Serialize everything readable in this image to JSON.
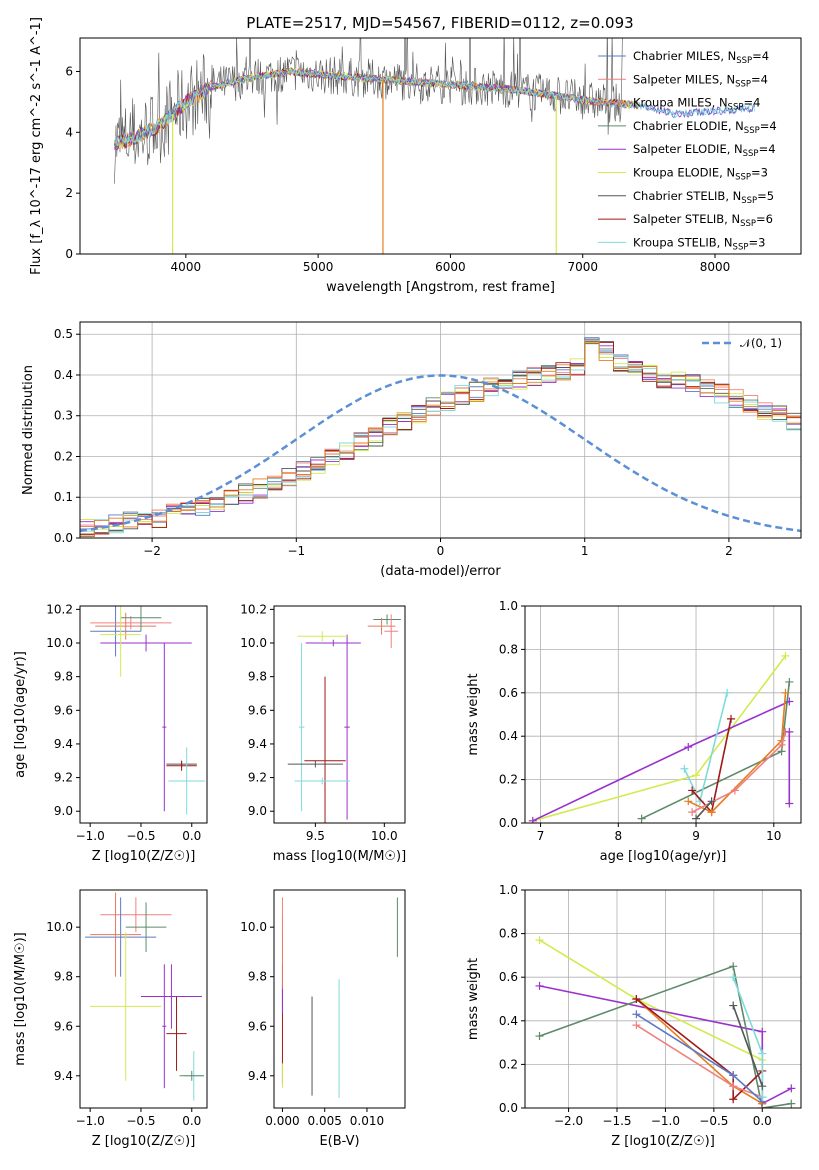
{
  "page_title": "PLATE=2517, MJD=54567, FIBERID=0112, z=0.093",
  "series_colors": {
    "chabrier_miles": "#5b7ac6",
    "salpeter_miles": "#f08080",
    "kroupa_miles": "#e07a5f",
    "chabrier_elodie": "#5f8a6a",
    "salpeter_elodie": "#9932cc",
    "kroupa_elodie": "#d4ea4f",
    "chabrier_stelib": "#555555",
    "salpeter_stelib": "#a01818",
    "kroupa_stelib": "#7fdbdb",
    "orange": "#e67e22"
  },
  "chart_data": [
    {
      "id": "spectrum",
      "type": "line",
      "xlabel": "wavelength [Angstrom, rest frame]",
      "ylabel": "Flux [f_λ 10^-17 erg cm^-2 s^-1 A^-1]",
      "xlim": [
        3200,
        8650
      ],
      "ylim": [
        0,
        7.1
      ],
      "xticks": [
        "4000",
        "5000",
        "6000",
        "7000",
        "8000"
      ],
      "yticks": [
        "0",
        "2",
        "4",
        "6"
      ],
      "legend_placement": "top-right",
      "legend": [
        "Chabrier MILES, N_SSP=4",
        "Salpeter MILES, N_SSP=4",
        "Kroupa MILES, N_SSP=4",
        "Chabrier ELODIE, N_SSP=4",
        "Salpeter ELODIE, N_SSP=4",
        "Kroupa ELODIE, N_SSP=3",
        "Chabrier STELIB, N_SSP=5",
        "Salpeter STELIB, N_SSP=6",
        "Kroupa STELIB, N_SSP=3"
      ],
      "continuum": {
        "x": [
          3450,
          3600,
          3800,
          4000,
          4200,
          4500,
          4800,
          5000,
          5300,
          5600,
          5900,
          6200,
          6500,
          6800,
          7100,
          7400,
          7700,
          8000,
          8300
        ],
        "y": [
          3.6,
          3.8,
          4.2,
          5.0,
          5.5,
          5.8,
          6.0,
          5.9,
          5.8,
          5.7,
          5.6,
          5.5,
          5.4,
          5.2,
          5.0,
          4.9,
          4.6,
          4.7,
          4.8
        ]
      },
      "spikes_to_zero": [
        {
          "x": 5490,
          "color": "orange"
        },
        {
          "x": 6800,
          "color": "kroupa_elodie"
        },
        {
          "x": 3900,
          "color": "kroupa_elodie"
        }
      ]
    },
    {
      "id": "residuals",
      "type": "bar",
      "xlabel": "(data-model)/error",
      "ylabel": "Normed distribution",
      "xlim": [
        -2.5,
        2.5
      ],
      "ylim": [
        0,
        0.53
      ],
      "xticks": [
        "-2",
        "-1",
        "0",
        "1",
        "2"
      ],
      "yticks": [
        "0.0",
        "0.1",
        "0.2",
        "0.3",
        "0.4",
        "0.5"
      ],
      "grid": true,
      "legend_placement": "top-right",
      "legend": [
        "N(0,1)"
      ],
      "bin_width": 0.1,
      "bin_start": -2.5,
      "profile": [
        0.025,
        0.03,
        0.035,
        0.04,
        0.045,
        0.05,
        0.06,
        0.065,
        0.075,
        0.085,
        0.095,
        0.11,
        0.12,
        0.135,
        0.15,
        0.165,
        0.18,
        0.2,
        0.215,
        0.235,
        0.25,
        0.27,
        0.285,
        0.3,
        0.32,
        0.335,
        0.35,
        0.36,
        0.37,
        0.38,
        0.39,
        0.395,
        0.4,
        0.41,
        0.42,
        0.48,
        0.46,
        0.43,
        0.41,
        0.4,
        0.39,
        0.385,
        0.38,
        0.37,
        0.355,
        0.34,
        0.33,
        0.315,
        0.3,
        0.285,
        0.27,
        0.25,
        0.235,
        0.215,
        0.2,
        0.185,
        0.17,
        0.155,
        0.14,
        0.125,
        0.11,
        0.1,
        0.09,
        0.08,
        0.07,
        0.06,
        0.055,
        0.05,
        0.045,
        0.04,
        0.035,
        0.03,
        0.028,
        0.025
      ],
      "normal_pdf": {
        "mean": 0,
        "sd": 1
      }
    },
    {
      "id": "age_vs_Z",
      "type": "scatter",
      "xlabel": "Z [log10(Z/Z☉)]",
      "ylabel": "age [log10(age/yr)]",
      "xlim": [
        -1.1,
        0.15
      ],
      "ylim": [
        8.93,
        10.22
      ],
      "xticks": [
        "-1.0",
        "-0.5",
        "0.0"
      ],
      "yticks": [
        "9.0",
        "9.2",
        "9.4",
        "9.6",
        "9.8",
        "10.0",
        "10.2"
      ],
      "points": [
        {
          "s": "chabrier_miles",
          "x": -0.75,
          "y": 10.07,
          "ex": 0.25,
          "ey": 0.15
        },
        {
          "s": "salpeter_miles",
          "x": -0.6,
          "y": 10.12,
          "ex": 0.4,
          "ey": 0.04
        },
        {
          "s": "kroupa_miles",
          "x": -0.65,
          "y": 10.1,
          "ex": 0.3,
          "ey": 0.08
        },
        {
          "s": "chabrier_elodie",
          "x": -0.5,
          "y": 10.15,
          "ex": 0.2,
          "ey": 0.08
        },
        {
          "s": "salpeter_elodie",
          "x": -0.45,
          "y": 10.0,
          "ex": 0.45,
          "ey": 0.05
        },
        {
          "s": "kroupa_elodie",
          "x": -0.7,
          "y": 10.05,
          "ex": 0.2,
          "ey": 0.25
        },
        {
          "s": "chabrier_stelib",
          "x": -0.1,
          "y": 9.28,
          "ex": 0.15,
          "ey": 0.02
        },
        {
          "s": "salpeter_stelib",
          "x": -0.1,
          "y": 9.27,
          "ex": 0.15,
          "ey": 0.03
        },
        {
          "s": "kroupa_stelib",
          "x": -0.05,
          "y": 9.18,
          "ex": 0.18,
          "ey": 0.2
        },
        {
          "s": "salpeter_elodie",
          "x": -0.27,
          "y": 9.5,
          "ex": 0.02,
          "ey": 0.5
        }
      ]
    },
    {
      "id": "age_vs_mass",
      "type": "scatter",
      "xlabel": "mass [log10(M/M☉)]",
      "ylabel": "",
      "xlim": [
        9.2,
        10.15
      ],
      "ylim": [
        8.93,
        10.22
      ],
      "xticks": [
        "9.5",
        "10.0"
      ],
      "yticks": [
        "9.0",
        "9.2",
        "9.4",
        "9.6",
        "9.8",
        "10.0",
        "10.2"
      ],
      "points": [
        {
          "s": "kroupa_stelib",
          "x": 9.4,
          "y": 9.5,
          "ex": 0.02,
          "ey": 0.5
        },
        {
          "s": "chabrier_stelib",
          "x": 9.5,
          "y": 9.28,
          "ex": 0.2,
          "ey": 0.02
        },
        {
          "s": "salpeter_stelib",
          "x": 9.57,
          "y": 9.3,
          "ex": 0.15,
          "ey": 0.5
        },
        {
          "s": "salpeter_elodie",
          "x": 9.73,
          "y": 9.5,
          "ex": 0.02,
          "ey": 0.55
        },
        {
          "s": "kroupa_elodie",
          "x": 9.55,
          "y": 10.04,
          "ex": 0.18,
          "ey": 0.03
        },
        {
          "s": "chabrier_elodie",
          "x": 10.02,
          "y": 10.14,
          "ex": 0.1,
          "ey": 0.03
        },
        {
          "s": "kroupa_miles",
          "x": 9.98,
          "y": 10.1,
          "ex": 0.1,
          "ey": 0.05
        },
        {
          "s": "salpeter_miles",
          "x": 10.05,
          "y": 10.07,
          "ex": 0.05,
          "ey": 0.1
        },
        {
          "s": "salpeter_elodie",
          "x": 9.63,
          "y": 10.0,
          "ex": 0.2,
          "ey": 0.02
        },
        {
          "s": "kroupa_stelib",
          "x": 9.55,
          "y": 9.18,
          "ex": 0.2,
          "ey": 0.02
        }
      ]
    },
    {
      "id": "weight_vs_age",
      "type": "line",
      "xlabel": "age [log10(age/yr)]",
      "ylabel": "mass weight",
      "xlim": [
        6.8,
        10.35
      ],
      "ylim": [
        0,
        1
      ],
      "xticks": [
        "7",
        "8",
        "9",
        "10"
      ],
      "yticks": [
        "0.0",
        "0.2",
        "0.4",
        "0.6",
        "0.8",
        "1.0"
      ],
      "grid": true,
      "series": [
        {
          "s": "kroupa_elodie",
          "x": [
            6.9,
            9.0,
            10.15
          ],
          "y": [
            0.01,
            0.22,
            0.77
          ]
        },
        {
          "s": "salpeter_elodie",
          "x": [
            6.9,
            8.9,
            10.2
          ],
          "y": [
            0.01,
            0.35,
            0.56
          ]
        },
        {
          "s": "chabrier_elodie",
          "x": [
            8.3,
            10.1,
            10.2
          ],
          "y": [
            0.02,
            0.33,
            0.65
          ]
        },
        {
          "s": "kroupa_stelib",
          "x": [
            8.85,
            9.05,
            9.4
          ],
          "y": [
            0.25,
            0.1,
            0.6
          ]
        },
        {
          "s": "salpeter_stelib",
          "x": [
            8.95,
            9.2,
            9.45
          ],
          "y": [
            0.15,
            0.05,
            0.48
          ]
        },
        {
          "s": "orange",
          "x": [
            8.9,
            9.2,
            10.1,
            10.15
          ],
          "y": [
            0.1,
            0.05,
            0.38,
            0.6
          ]
        },
        {
          "s": "salpeter_miles",
          "x": [
            8.95,
            9.5,
            10.1,
            10.15
          ],
          "y": [
            0.05,
            0.15,
            0.36,
            0.42
          ]
        },
        {
          "s": "salpeter_elodie",
          "x": [
            10.2,
            10.2
          ],
          "y": [
            0.09,
            0.42
          ]
        },
        {
          "s": "chabrier_stelib",
          "x": [
            9.0,
            9.2
          ],
          "y": [
            0.02,
            0.1
          ]
        }
      ]
    },
    {
      "id": "mass_vs_Z",
      "type": "scatter",
      "xlabel": "Z [log10(Z/Z☉)]",
      "ylabel": "mass [log10(M/M☉)]",
      "xlim": [
        -1.1,
        0.15
      ],
      "ylim": [
        9.27,
        10.15
      ],
      "xticks": [
        "-1.0",
        "-0.5",
        "0.0"
      ],
      "yticks": [
        "9.4",
        "9.6",
        "9.8",
        "10.0"
      ],
      "points": [
        {
          "s": "salpeter_miles",
          "x": -0.55,
          "y": 10.05,
          "ex": 0.35,
          "ey": 0.07
        },
        {
          "s": "chabrier_miles",
          "x": -0.7,
          "y": 9.96,
          "ex": 0.35,
          "ey": 0.16
        },
        {
          "s": "kroupa_miles",
          "x": -0.75,
          "y": 9.97,
          "ex": 0.25,
          "ey": 0.17
        },
        {
          "s": "chabrier_elodie",
          "x": -0.45,
          "y": 10.0,
          "ex": 0.2,
          "ey": 0.1
        },
        {
          "s": "salpeter_elodie",
          "x": -0.2,
          "y": 9.72,
          "ex": 0.3,
          "ey": 0.13
        },
        {
          "s": "kroupa_elodie",
          "x": -0.65,
          "y": 9.68,
          "ex": 0.35,
          "ey": 0.3
        },
        {
          "s": "salpeter_stelib",
          "x": -0.15,
          "y": 9.57,
          "ex": 0.1,
          "ey": 0.15
        },
        {
          "s": "kroupa_stelib",
          "x": 0.02,
          "y": 9.4,
          "ex": 0.1,
          "ey": 0.1
        },
        {
          "s": "chabrier_elodie",
          "x": 0.0,
          "y": 9.4,
          "ex": 0.12,
          "ey": 0.02
        },
        {
          "s": "salpeter_elodie",
          "x": -0.27,
          "y": 9.6,
          "ex": 0.02,
          "ey": 0.25
        }
      ]
    },
    {
      "id": "mass_vs_EBV",
      "type": "scatter",
      "xlabel": "E(B-V)",
      "ylabel": "",
      "xlim": [
        -0.001,
        0.0145
      ],
      "ylim": [
        9.27,
        10.15
      ],
      "xticks": [
        "0.000",
        "0.005",
        "0.010"
      ],
      "yticks": [
        "9.4",
        "9.6",
        "9.8",
        "10.0"
      ],
      "points": [
        {
          "s": "chabrier_stelib",
          "x": 0.0035,
          "y": 9.52,
          "ex": 0,
          "ey": 0.2
        },
        {
          "s": "kroupa_stelib",
          "x": 0.0067,
          "y": 9.55,
          "ex": 0,
          "ey": 0.24
        },
        {
          "s": "chabrier_elodie",
          "x": 0.0136,
          "y": 10.0,
          "ex": 0,
          "ey": 0.12
        },
        {
          "s": "salpeter_stelib",
          "x": 0.0,
          "y": 9.57,
          "ex": 0,
          "ey": 0.2
        },
        {
          "s": "salpeter_elodie",
          "x": 0.0,
          "y": 9.75,
          "ex": 0,
          "ey": 0.1
        },
        {
          "s": "kroupa_miles",
          "x": 0.0,
          "y": 9.9,
          "ex": 0,
          "ey": 0.15
        },
        {
          "s": "salpeter_miles",
          "x": 0.0,
          "y": 10.05,
          "ex": 0,
          "ey": 0.07
        },
        {
          "s": "kroupa_elodie",
          "x": 0.0,
          "y": 9.4,
          "ex": 0,
          "ey": 0.05
        }
      ]
    },
    {
      "id": "weight_vs_Z",
      "type": "line",
      "xlabel": "Z [log10(Z/Z☉)]",
      "ylabel": "mass weight",
      "xlim": [
        -2.45,
        0.4
      ],
      "ylim": [
        0,
        1
      ],
      "xticks": [
        "-2.0",
        "-1.5",
        "-1.0",
        "-0.5",
        "0.0"
      ],
      "yticks": [
        "0.0",
        "0.2",
        "0.4",
        "0.6",
        "0.8",
        "1.0"
      ],
      "grid": true,
      "series": [
        {
          "s": "kroupa_elodie",
          "x": [
            -2.3,
            -1.3,
            0.0
          ],
          "y": [
            0.77,
            0.5,
            0.22
          ]
        },
        {
          "s": "salpeter_elodie",
          "x": [
            -2.3,
            0.0,
            0.0,
            0.3
          ],
          "y": [
            0.56,
            0.35,
            0.02,
            0.09
          ]
        },
        {
          "s": "chabrier_elodie",
          "x": [
            -2.3,
            -0.3,
            0.0,
            0.3
          ],
          "y": [
            0.33,
            0.65,
            0.0,
            0.02
          ]
        },
        {
          "s": "orange",
          "x": [
            -1.3,
            -0.3,
            0.0
          ],
          "y": [
            0.5,
            0.1,
            0.02
          ]
        },
        {
          "s": "salpeter_stelib",
          "x": [
            -1.3,
            -0.3,
            -0.3,
            0.0
          ],
          "y": [
            0.5,
            0.15,
            0.04,
            0.17
          ]
        },
        {
          "s": "salpeter_miles",
          "x": [
            -1.3,
            -0.3,
            0.0
          ],
          "y": [
            0.38,
            0.1,
            0.05
          ]
        },
        {
          "s": "chabrier_miles",
          "x": [
            -1.3,
            -0.3,
            0.0
          ],
          "y": [
            0.43,
            0.15,
            0.03
          ]
        },
        {
          "s": "kroupa_stelib",
          "x": [
            -0.3,
            0.0,
            0.0
          ],
          "y": [
            0.6,
            0.25,
            0.05
          ]
        },
        {
          "s": "chabrier_stelib",
          "x": [
            -0.3,
            0.0
          ],
          "y": [
            0.47,
            0.1
          ]
        }
      ]
    }
  ]
}
